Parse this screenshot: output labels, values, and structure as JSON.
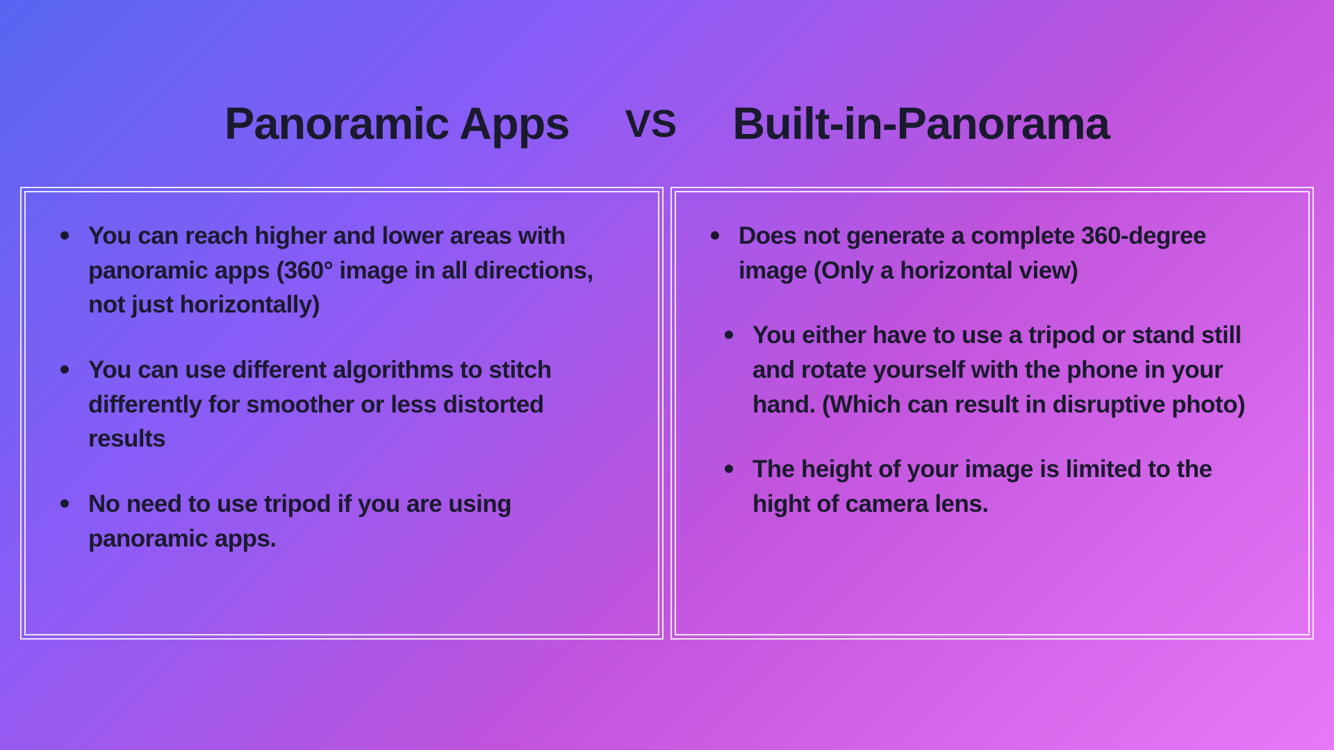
{
  "header": {
    "left_title": "Panoramic Apps",
    "vs_label": "VS",
    "right_title": "Built-in-Panorama"
  },
  "left_box": {
    "items": [
      {
        "text": "You can reach higher and lower areas with panoramic apps (360° image in all directions, not just horizontally)",
        "indented": false
      },
      {
        "text": "You can use different algorithms to stitch differently for smoother or less distorted results",
        "indented": false
      },
      {
        "text": "No need to use tripod if you are using panoramic apps.",
        "indented": false
      }
    ]
  },
  "right_box": {
    "items": [
      {
        "text": "Does not generate a complete 360-degree image (Only a horizontal view)",
        "indented": false
      },
      {
        "text": "You either have to use a tripod or stand still and rotate yourself with the phone in your hand. (Which can result in disruptive photo)",
        "indented": true
      },
      {
        "text": "The height of your image is limited to the hight of camera lens.",
        "indented": true
      }
    ]
  },
  "styling": {
    "background_gradient_start": "#5865f2",
    "background_gradient_mid1": "#8b5cf6",
    "background_gradient_mid2": "#c154dc",
    "background_gradient_end": "#e879f9",
    "text_color": "#1a1a2e",
    "border_color": "rgba(255,255,255,0.85)",
    "title_fontsize": 65,
    "vs_fontsize": 56,
    "bullet_fontsize": 35,
    "title_fontweight": 800,
    "bullet_fontweight": 700
  }
}
